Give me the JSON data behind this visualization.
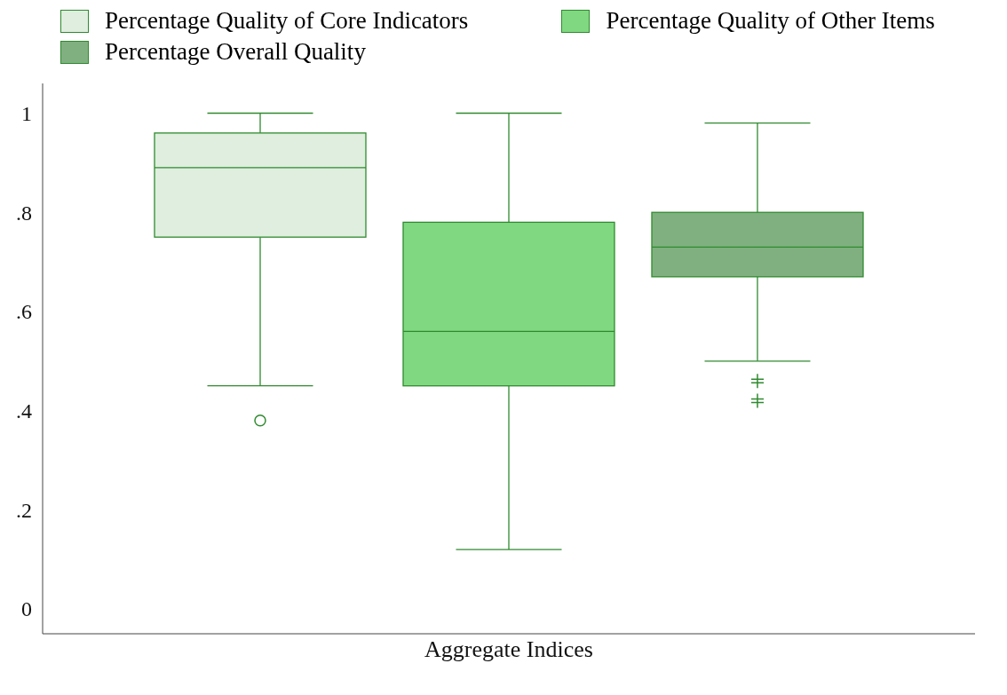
{
  "chart_data": {
    "type": "box",
    "categories": [
      "Aggregate Indices"
    ],
    "ylim": [
      -0.05,
      1.06
    ],
    "yticks": [
      0,
      {
        "value": 0.2,
        "label": ".2"
      },
      {
        "value": 0.4,
        "label": ".4"
      },
      {
        "value": 0.6,
        "label": ".6"
      },
      {
        "value": 0.8,
        "label": ".8"
      },
      1
    ],
    "grid": false,
    "legend": "top",
    "series": [
      {
        "name": "Percentage Quality of Core Indicators",
        "color": "#dfeedf",
        "marker": "circle",
        "boxes": [
          {
            "low": 0.45,
            "q1": 0.75,
            "median": 0.89,
            "q3": 0.96,
            "high": 1.0,
            "outliers": [
              0.38
            ]
          }
        ]
      },
      {
        "name": "Percentage Quality of Other Items",
        "color": "#80d981",
        "boxes": [
          {
            "low": 0.12,
            "q1": 0.45,
            "median": 0.56,
            "q3": 0.78,
            "high": 1.0
          }
        ]
      },
      {
        "name": "Percentage Overall Quality",
        "color": "#80b080",
        "marker": "cross",
        "boxes": [
          {
            "low": 0.5,
            "q1": 0.67,
            "median": 0.73,
            "q3": 0.8,
            "high": 0.98,
            "outliers": [
              0.46,
              0.42
            ]
          }
        ]
      }
    ]
  }
}
